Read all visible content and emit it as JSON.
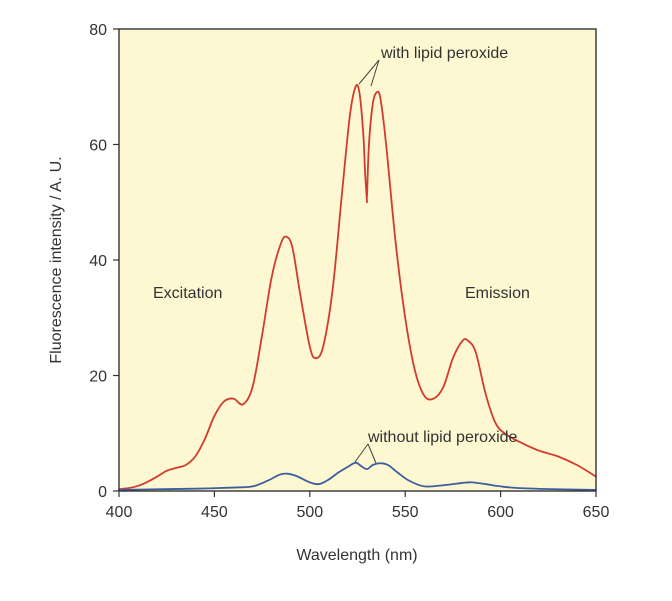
{
  "chart_data": {
    "type": "line",
    "xlabel": "Wavelength (nm)",
    "ylabel": "Fluorescence intensity / A. U.",
    "xlim": [
      400,
      650
    ],
    "ylim": [
      0,
      80
    ],
    "xticks": [
      "400",
      "450",
      "500",
      "550",
      "600",
      "650"
    ],
    "yticks": [
      "0",
      "20",
      "40",
      "60",
      "80"
    ],
    "grid": false,
    "plot_background": "#fdf7d2",
    "annotations": {
      "excitation": "Excitation",
      "emission": "Emission",
      "with": "with lipid peroxide",
      "without": "without lipid peroxide"
    },
    "series": [
      {
        "key": "with",
        "color": "#d23c2e",
        "segments": [
          [
            [
              400,
              0.3
            ],
            [
              405,
              0.5
            ],
            [
              410,
              0.9
            ],
            [
              415,
              1.6
            ],
            [
              420,
              2.5
            ],
            [
              425,
              3.5
            ],
            [
              430,
              4.0
            ],
            [
              435,
              4.5
            ],
            [
              440,
              6.0
            ],
            [
              445,
              9.0
            ],
            [
              450,
              13.0
            ],
            [
              455,
              15.5
            ],
            [
              460,
              16.0
            ],
            [
              465,
              15.0
            ],
            [
              470,
              18.0
            ],
            [
              475,
              27.0
            ],
            [
              480,
              37.0
            ],
            [
              485,
              43.0
            ],
            [
              488,
              44.0
            ],
            [
              491,
              42.0
            ],
            [
              495,
              34.0
            ],
            [
              500,
              25.0
            ],
            [
              503,
              23.0
            ],
            [
              507,
              25.0
            ],
            [
              512,
              35.0
            ],
            [
              517,
              52.0
            ],
            [
              521,
              65.0
            ],
            [
              524,
              70.0
            ],
            [
              526,
              69.0
            ],
            [
              528,
              62.0
            ],
            [
              529,
              55.0
            ],
            [
              530,
              50.0
            ]
          ],
          [
            [
              530,
              51.0
            ],
            [
              531,
              60.0
            ],
            [
              533,
              67.0
            ],
            [
              535,
              69.0
            ],
            [
              537,
              68.0
            ],
            [
              540,
              60.0
            ],
            [
              545,
              43.0
            ],
            [
              550,
              30.0
            ],
            [
              555,
              21.0
            ],
            [
              560,
              16.5
            ],
            [
              565,
              16.0
            ],
            [
              570,
              18.0
            ],
            [
              575,
              23.0
            ],
            [
              580,
              26.0
            ],
            [
              583,
              26.0
            ],
            [
              587,
              24.0
            ],
            [
              592,
              17.0
            ],
            [
              597,
              12.0
            ],
            [
              602,
              10.0
            ],
            [
              610,
              8.5
            ],
            [
              620,
              7.0
            ],
            [
              630,
              6.0
            ],
            [
              640,
              4.5
            ],
            [
              650,
              2.5
            ]
          ]
        ]
      },
      {
        "key": "without",
        "color": "#3c5fa0",
        "segments": [
          [
            [
              400,
              0.2
            ],
            [
              420,
              0.3
            ],
            [
              440,
              0.4
            ],
            [
              460,
              0.6
            ],
            [
              470,
              0.8
            ],
            [
              478,
              1.8
            ],
            [
              484,
              2.8
            ],
            [
              488,
              3.0
            ],
            [
              493,
              2.6
            ],
            [
              500,
              1.5
            ],
            [
              505,
              1.2
            ],
            [
              510,
              2.0
            ],
            [
              515,
              3.2
            ],
            [
              520,
              4.2
            ],
            [
              524,
              4.9
            ],
            [
              527,
              4.3
            ],
            [
              530,
              3.8
            ],
            [
              533,
              4.5
            ],
            [
              537,
              4.8
            ],
            [
              541,
              4.5
            ],
            [
              546,
              3.2
            ],
            [
              552,
              1.8
            ],
            [
              560,
              0.8
            ],
            [
              570,
              1.0
            ],
            [
              580,
              1.4
            ],
            [
              585,
              1.5
            ],
            [
              592,
              1.2
            ],
            [
              600,
              0.8
            ],
            [
              610,
              0.5
            ],
            [
              630,
              0.3
            ],
            [
              650,
              0.2
            ]
          ]
        ]
      }
    ]
  }
}
